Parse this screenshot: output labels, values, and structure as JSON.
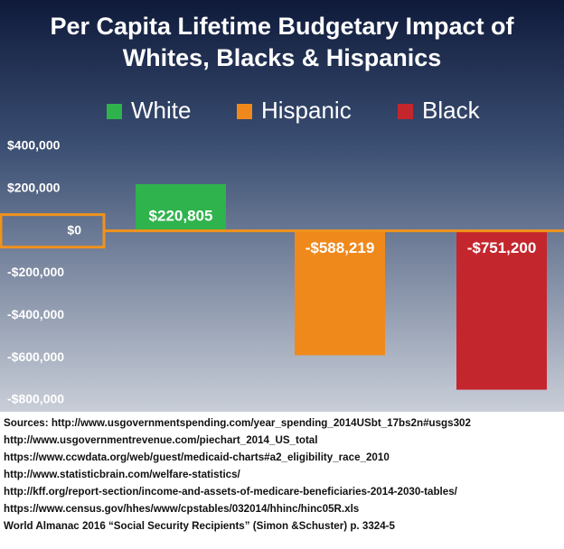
{
  "chart_data": {
    "type": "bar",
    "title": [
      "Per Capita Lifetime Budgetary Impact of",
      "Whites, Blacks & Hispanics"
    ],
    "series": [
      {
        "name": "White",
        "color": "#2fb34c",
        "values": [
          220805
        ],
        "value_labels": [
          "$220,805"
        ]
      },
      {
        "name": "Hispanic",
        "color": "#f0891c",
        "values": [
          -588219
        ],
        "value_labels": [
          "-$588,219"
        ]
      },
      {
        "name": "Black",
        "color": "#c4262d",
        "values": [
          -751200
        ],
        "value_labels": [
          "-$751,200"
        ]
      }
    ],
    "ylim": [
      -800000,
      400000
    ],
    "yticks": [
      {
        "value": 400000,
        "label": "$400,000"
      },
      {
        "value": 200000,
        "label": "$200,000"
      },
      {
        "value": 0,
        "label": "$0"
      },
      {
        "value": -200000,
        "label": "-$200,000"
      },
      {
        "value": -400000,
        "label": "-$400,000"
      },
      {
        "value": -600000,
        "label": "-$600,000"
      },
      {
        "value": -800000,
        "label": "-$800,000"
      }
    ],
    "grid": false,
    "sources": [
      "Sources: http://www.usgovernmentspending.com/year_spending_2014USbt_17bs2n#usgs302",
      "http://www.usgovernmentrevenue.com/piechart_2014_US_total",
      "https://www.ccwdata.org/web/guest/medicaid-charts#a2_eligibility_race_2010",
      "http://www.statisticbrain.com/welfare-statistics/",
      "http://kff.org/report-section/income-and-assets-of-medicare-beneficiaries-2014-2030-tables/",
      "https://www.census.gov/hhes/www/cpstables/032014/hhinc/hinc05R.xls",
      "World Almanac 2016 “Social Security Recipients” (Simon &Schuster) p. 3324-5"
    ]
  }
}
